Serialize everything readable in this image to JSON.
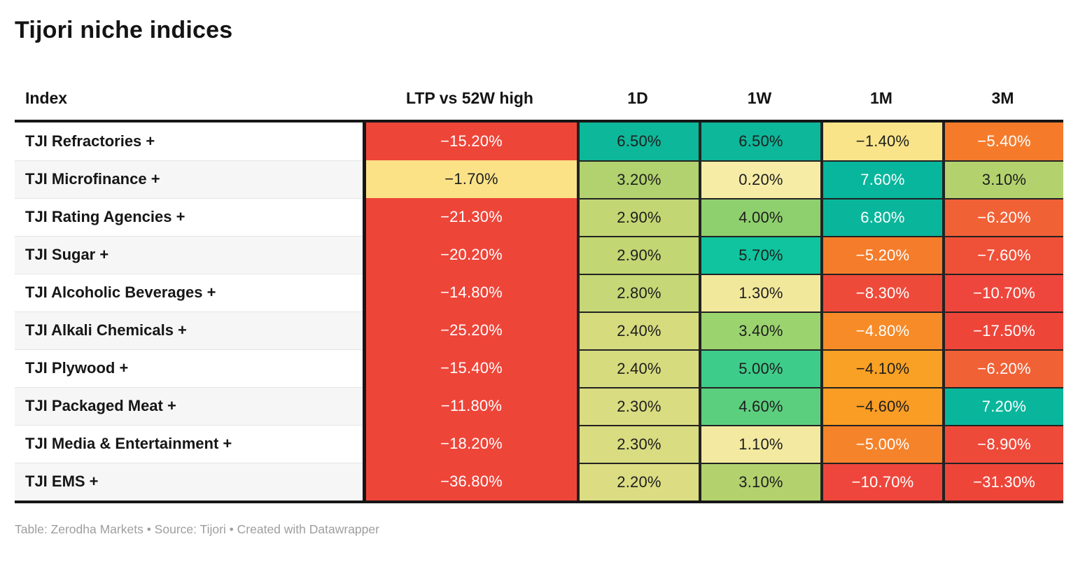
{
  "title": "Tijori niche indices",
  "footer": "Table: Zerodha Markets • Source: Tijori • Created with Datawrapper",
  "table": {
    "columns": [
      "Index",
      "LTP vs 52W high",
      "1D",
      "1W",
      "1M",
      "3M"
    ],
    "rows": [
      {
        "label": "TJI Refractories +",
        "cells": [
          {
            "v": "−15.20%",
            "bg": "#ee4539",
            "fg": "light"
          },
          {
            "v": "6.50%",
            "bg": "#0db79a",
            "fg": "dark"
          },
          {
            "v": "6.50%",
            "bg": "#0db79a",
            "fg": "dark"
          },
          {
            "v": "−1.40%",
            "bg": "#fae48a",
            "fg": "dark"
          },
          {
            "v": "−5.40%",
            "bg": "#f57b2b",
            "fg": "light"
          }
        ]
      },
      {
        "label": "TJI Microfinance +",
        "cells": [
          {
            "v": "−1.70%",
            "bg": "#fbe287",
            "fg": "dark"
          },
          {
            "v": "3.20%",
            "bg": "#b1d26e",
            "fg": "dark"
          },
          {
            "v": "0.20%",
            "bg": "#f6eca6",
            "fg": "dark"
          },
          {
            "v": "7.60%",
            "bg": "#07b69c",
            "fg": "light"
          },
          {
            "v": "3.10%",
            "bg": "#b3d26e",
            "fg": "dark"
          }
        ]
      },
      {
        "label": "TJI Rating Agencies +",
        "cells": [
          {
            "v": "−21.30%",
            "bg": "#ee4539",
            "fg": "light"
          },
          {
            "v": "2.90%",
            "bg": "#c2d673",
            "fg": "dark"
          },
          {
            "v": "4.00%",
            "bg": "#8ed06d",
            "fg": "dark"
          },
          {
            "v": "6.80%",
            "bg": "#0ab69b",
            "fg": "light"
          },
          {
            "v": "−6.20%",
            "bg": "#f16136",
            "fg": "light"
          }
        ]
      },
      {
        "label": "TJI Sugar +",
        "cells": [
          {
            "v": "−20.20%",
            "bg": "#ee4539",
            "fg": "light"
          },
          {
            "v": "2.90%",
            "bg": "#c2d673",
            "fg": "dark"
          },
          {
            "v": "5.70%",
            "bg": "#0fc49e",
            "fg": "dark"
          },
          {
            "v": "−5.20%",
            "bg": "#f57c2a",
            "fg": "light"
          },
          {
            "v": "−7.60%",
            "bg": "#ef5038",
            "fg": "light"
          }
        ]
      },
      {
        "label": "TJI Alcoholic Beverages +",
        "cells": [
          {
            "v": "−14.80%",
            "bg": "#ee4539",
            "fg": "light"
          },
          {
            "v": "2.80%",
            "bg": "#c5d776",
            "fg": "dark"
          },
          {
            "v": "1.30%",
            "bg": "#f2e89c",
            "fg": "dark"
          },
          {
            "v": "−8.30%",
            "bg": "#ee4a3a",
            "fg": "light"
          },
          {
            "v": "−10.70%",
            "bg": "#ee463c",
            "fg": "light"
          }
        ]
      },
      {
        "label": "TJI Alkali Chemicals +",
        "cells": [
          {
            "v": "−25.20%",
            "bg": "#ee4539",
            "fg": "light"
          },
          {
            "v": "2.40%",
            "bg": "#d6db7e",
            "fg": "dark"
          },
          {
            "v": "3.40%",
            "bg": "#9bd36f",
            "fg": "dark"
          },
          {
            "v": "−4.80%",
            "bg": "#f68b28",
            "fg": "light"
          },
          {
            "v": "−17.50%",
            "bg": "#ee4539",
            "fg": "light"
          }
        ]
      },
      {
        "label": "TJI Plywood +",
        "cells": [
          {
            "v": "−15.40%",
            "bg": "#ee4539",
            "fg": "light"
          },
          {
            "v": "2.40%",
            "bg": "#d6db7e",
            "fg": "dark"
          },
          {
            "v": "5.00%",
            "bg": "#3ecc8a",
            "fg": "dark"
          },
          {
            "v": "−4.10%",
            "bg": "#f9a124",
            "fg": "dark"
          },
          {
            "v": "−6.20%",
            "bg": "#f16136",
            "fg": "light"
          }
        ]
      },
      {
        "label": "TJI Packaged Meat +",
        "cells": [
          {
            "v": "−11.80%",
            "bg": "#ee4539",
            "fg": "light"
          },
          {
            "v": "2.30%",
            "bg": "#d9dc80",
            "fg": "dark"
          },
          {
            "v": "4.60%",
            "bg": "#5ccf7f",
            "fg": "dark"
          },
          {
            "v": "−4.60%",
            "bg": "#f99d25",
            "fg": "dark"
          },
          {
            "v": "7.20%",
            "bg": "#09b69c",
            "fg": "light"
          }
        ]
      },
      {
        "label": "TJI Media & Entertainment +",
        "cells": [
          {
            "v": "−18.20%",
            "bg": "#ee4539",
            "fg": "light"
          },
          {
            "v": "2.30%",
            "bg": "#d9dc80",
            "fg": "dark"
          },
          {
            "v": "1.10%",
            "bg": "#f3e9a0",
            "fg": "dark"
          },
          {
            "v": "−5.00%",
            "bg": "#f5832a",
            "fg": "light"
          },
          {
            "v": "−8.90%",
            "bg": "#ee4a3a",
            "fg": "light"
          }
        ]
      },
      {
        "label": "TJI EMS +",
        "cells": [
          {
            "v": "−36.80%",
            "bg": "#ee4539",
            "fg": "light"
          },
          {
            "v": "2.20%",
            "bg": "#dcdd82",
            "fg": "dark"
          },
          {
            "v": "3.10%",
            "bg": "#b3d26e",
            "fg": "dark"
          },
          {
            "v": "−10.70%",
            "bg": "#ee463c",
            "fg": "light"
          },
          {
            "v": "−31.30%",
            "bg": "#ee4539",
            "fg": "light"
          }
        ]
      }
    ]
  },
  "colors": {
    "text_light": "#ffffff",
    "text_dark": "#1d1d1d",
    "border_dark": "#161616",
    "positive_strong": "#0db79a",
    "negative_strong": "#ee4539"
  },
  "chart_data": {
    "type": "table",
    "title": "Tijori niche indices",
    "columns": [
      "Index",
      "LTP vs 52W high",
      "1D",
      "1W",
      "1M",
      "3M"
    ],
    "rows": [
      [
        "TJI Refractories +",
        -15.2,
        6.5,
        6.5,
        -1.4,
        -5.4
      ],
      [
        "TJI Microfinance +",
        -1.7,
        3.2,
        0.2,
        7.6,
        3.1
      ],
      [
        "TJI Rating Agencies +",
        -21.3,
        2.9,
        4.0,
        6.8,
        -6.2
      ],
      [
        "TJI Sugar +",
        -20.2,
        2.9,
        5.7,
        -5.2,
        -7.6
      ],
      [
        "TJI Alcoholic Beverages +",
        -14.8,
        2.8,
        1.3,
        -8.3,
        -10.7
      ],
      [
        "TJI Alkali Chemicals +",
        -25.2,
        2.4,
        3.4,
        -4.8,
        -17.5
      ],
      [
        "TJI Plywood +",
        -15.4,
        2.4,
        5.0,
        -4.1,
        -6.2
      ],
      [
        "TJI Packaged Meat +",
        -11.8,
        2.3,
        4.6,
        -4.6,
        7.2
      ],
      [
        "TJI Media & Entertainment +",
        -18.2,
        2.3,
        1.1,
        -5.0,
        -8.9
      ],
      [
        "TJI EMS +",
        -36.8,
        2.2,
        3.1,
        -10.7,
        -31.3
      ]
    ],
    "units": "percent",
    "heatmap": true,
    "notes": "Table: Zerodha Markets • Source: Tijori • Created with Datawrapper"
  }
}
